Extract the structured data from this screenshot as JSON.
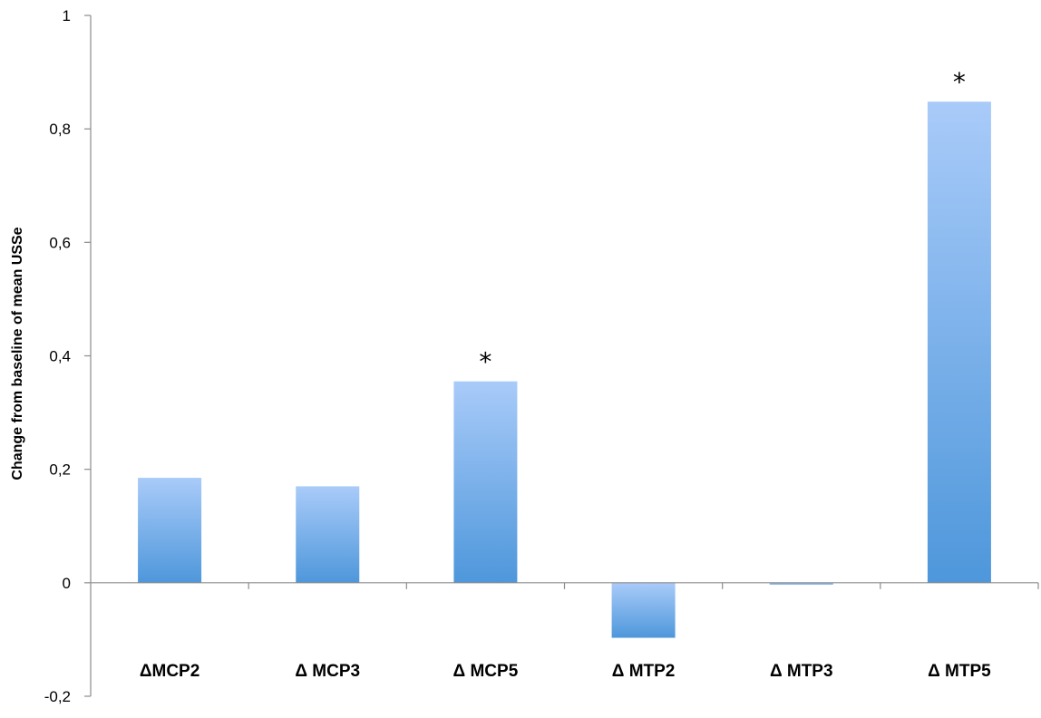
{
  "chart_data": {
    "type": "bar",
    "title": "",
    "xlabel": "",
    "ylabel": "Change from baseline of mean USSe",
    "categories": [
      "ΔMCP2",
      "Δ MCP3",
      "Δ MCP5",
      "Δ MTP2",
      "Δ MTP3",
      "Δ MTP5"
    ],
    "values": [
      0.185,
      0.17,
      0.355,
      -0.097,
      -0.003,
      0.848
    ],
    "annotations": [
      "",
      "",
      "*",
      "",
      "",
      "*"
    ],
    "ylim": [
      -0.2,
      1
    ],
    "yticks": [
      -0.2,
      0,
      0.2,
      0.4,
      0.6,
      0.8,
      1
    ],
    "ytick_labels": [
      "-0,2",
      "0",
      "0,2",
      "0,4",
      "0,6",
      "0,8",
      "1"
    ],
    "grid": false,
    "legend": "none",
    "colors": {
      "bar_top": "#A9CBF9",
      "bar_bottom": "#4E97DB",
      "axis": "#8C8C8C"
    }
  }
}
